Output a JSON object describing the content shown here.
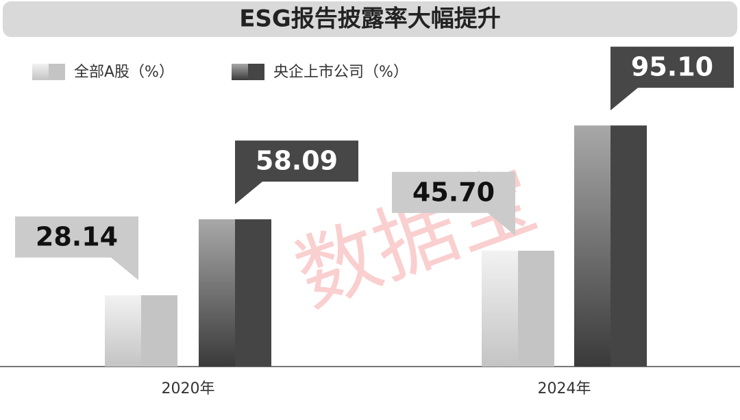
{
  "chart_data": {
    "type": "bar",
    "title": "ESG报告披露率大幅提升",
    "watermark": "数据宝",
    "categories": [
      "2020年",
      "2024年"
    ],
    "series": [
      {
        "name": "全部A股（%）",
        "color": "#c4c4c4",
        "values": [
          28.14,
          45.7
        ],
        "value_labels": [
          "28.14",
          "45.70"
        ]
      },
      {
        "name": "央企上市公司（%）",
        "color": "#454545",
        "values": [
          58.09,
          95.1
        ],
        "value_labels": [
          "58.09",
          "95.10"
        ]
      }
    ]
  }
}
